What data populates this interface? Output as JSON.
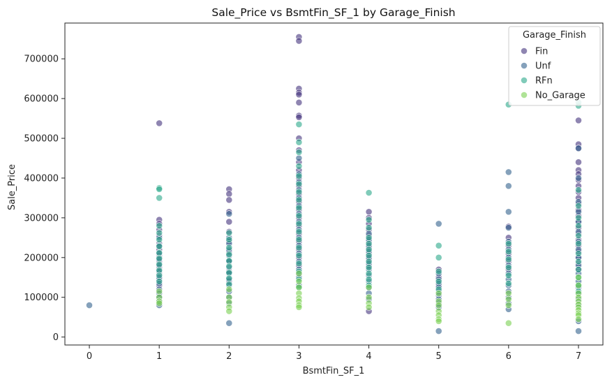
{
  "chart_data": {
    "type": "scatter",
    "title": "Sale_Price vs BsmtFin_SF_1 by Garage_Finish",
    "xlabel": "BsmtFin_SF_1",
    "ylabel": "Sale_Price",
    "xlim": [
      -0.35,
      7.35
    ],
    "ylim": [
      -20000,
      790000
    ],
    "x_ticks": [
      0,
      1,
      2,
      3,
      4,
      5,
      6,
      7
    ],
    "y_ticks": [
      0,
      100000,
      200000,
      300000,
      400000,
      500000,
      600000,
      700000
    ],
    "grid": false,
    "legend": {
      "title": "Garage_Finish",
      "placement": "top-right"
    },
    "series": [
      {
        "name": "Fin",
        "color": "#45337d",
        "points": [
          [
            1,
            538000
          ],
          [
            1,
            295000
          ],
          [
            1,
            285000
          ],
          [
            1,
            270000
          ],
          [
            1,
            255000
          ],
          [
            1,
            235000
          ],
          [
            1,
            220000
          ],
          [
            1,
            205000
          ],
          [
            1,
            190000
          ],
          [
            1,
            175000
          ],
          [
            1,
            160000
          ],
          [
            1,
            145000
          ],
          [
            1,
            130000
          ],
          [
            2,
            372000
          ],
          [
            2,
            360000
          ],
          [
            2,
            345000
          ],
          [
            2,
            315000
          ],
          [
            2,
            290000
          ],
          [
            2,
            265000
          ],
          [
            2,
            240000
          ],
          [
            2,
            215000
          ],
          [
            2,
            190000
          ],
          [
            2,
            165000
          ],
          [
            2,
            140000
          ],
          [
            3,
            755000
          ],
          [
            3,
            745000
          ],
          [
            3,
            625000
          ],
          [
            3,
            615000
          ],
          [
            3,
            610000
          ],
          [
            3,
            590000
          ],
          [
            3,
            557000
          ],
          [
            3,
            553000
          ],
          [
            3,
            500000
          ],
          [
            3,
            470000
          ],
          [
            3,
            440000
          ],
          [
            3,
            420000
          ],
          [
            3,
            400000
          ],
          [
            3,
            380000
          ],
          [
            3,
            360000
          ],
          [
            3,
            340000
          ],
          [
            3,
            320000
          ],
          [
            3,
            300000
          ],
          [
            3,
            280000
          ],
          [
            3,
            260000
          ],
          [
            3,
            240000
          ],
          [
            3,
            220000
          ],
          [
            3,
            200000
          ],
          [
            3,
            180000
          ],
          [
            3,
            160000
          ],
          [
            4,
            315000
          ],
          [
            4,
            300000
          ],
          [
            4,
            285000
          ],
          [
            4,
            270000
          ],
          [
            4,
            255000
          ],
          [
            4,
            240000
          ],
          [
            4,
            225000
          ],
          [
            4,
            210000
          ],
          [
            4,
            195000
          ],
          [
            4,
            180000
          ],
          [
            4,
            65000
          ],
          [
            5,
            170000
          ],
          [
            5,
            150000
          ],
          [
            5,
            130000
          ],
          [
            6,
            278000
          ],
          [
            6,
            250000
          ],
          [
            6,
            230000
          ],
          [
            6,
            210000
          ],
          [
            6,
            190000
          ],
          [
            6,
            170000
          ],
          [
            7,
            545000
          ],
          [
            7,
            485000
          ],
          [
            7,
            475000
          ],
          [
            7,
            440000
          ],
          [
            7,
            420000
          ],
          [
            7,
            410000
          ],
          [
            7,
            395000
          ],
          [
            7,
            380000
          ],
          [
            7,
            365000
          ],
          [
            7,
            350000
          ],
          [
            7,
            335000
          ],
          [
            7,
            320000
          ],
          [
            7,
            305000
          ],
          [
            7,
            290000
          ],
          [
            7,
            275000
          ],
          [
            7,
            260000
          ],
          [
            7,
            245000
          ],
          [
            7,
            230000
          ],
          [
            7,
            215000
          ],
          [
            7,
            200000
          ],
          [
            7,
            185000
          ],
          [
            7,
            170000
          ]
        ]
      },
      {
        "name": "Unf",
        "color": "#33638d",
        "points": [
          [
            0,
            80000
          ],
          [
            1,
            250000
          ],
          [
            1,
            230000
          ],
          [
            1,
            210000
          ],
          [
            1,
            195000
          ],
          [
            1,
            180000
          ],
          [
            1,
            165000
          ],
          [
            1,
            150000
          ],
          [
            1,
            135000
          ],
          [
            1,
            120000
          ],
          [
            1,
            110000
          ],
          [
            1,
            100000
          ],
          [
            1,
            90000
          ],
          [
            1,
            80000
          ],
          [
            2,
            310000
          ],
          [
            2,
            250000
          ],
          [
            2,
            235000
          ],
          [
            2,
            220000
          ],
          [
            2,
            205000
          ],
          [
            2,
            190000
          ],
          [
            2,
            175000
          ],
          [
            2,
            160000
          ],
          [
            2,
            145000
          ],
          [
            2,
            130000
          ],
          [
            2,
            115000
          ],
          [
            2,
            100000
          ],
          [
            2,
            85000
          ],
          [
            2,
            35000
          ],
          [
            3,
            450000
          ],
          [
            3,
            410000
          ],
          [
            3,
            390000
          ],
          [
            3,
            370000
          ],
          [
            3,
            350000
          ],
          [
            3,
            330000
          ],
          [
            3,
            310000
          ],
          [
            3,
            290000
          ],
          [
            3,
            270000
          ],
          [
            3,
            250000
          ],
          [
            3,
            230000
          ],
          [
            3,
            210000
          ],
          [
            3,
            190000
          ],
          [
            3,
            170000
          ],
          [
            3,
            150000
          ],
          [
            3,
            130000
          ],
          [
            4,
            260000
          ],
          [
            4,
            245000
          ],
          [
            4,
            230000
          ],
          [
            4,
            215000
          ],
          [
            4,
            200000
          ],
          [
            4,
            185000
          ],
          [
            4,
            170000
          ],
          [
            4,
            155000
          ],
          [
            4,
            140000
          ],
          [
            4,
            125000
          ],
          [
            4,
            110000
          ],
          [
            4,
            95000
          ],
          [
            5,
            285000
          ],
          [
            5,
            160000
          ],
          [
            5,
            145000
          ],
          [
            5,
            135000
          ],
          [
            5,
            125000
          ],
          [
            5,
            115000
          ],
          [
            5,
            105000
          ],
          [
            5,
            95000
          ],
          [
            5,
            85000
          ],
          [
            5,
            75000
          ],
          [
            5,
            15000
          ],
          [
            6,
            415000
          ],
          [
            6,
            380000
          ],
          [
            6,
            315000
          ],
          [
            6,
            275000
          ],
          [
            6,
            240000
          ],
          [
            6,
            220000
          ],
          [
            6,
            200000
          ],
          [
            6,
            180000
          ],
          [
            6,
            160000
          ],
          [
            6,
            145000
          ],
          [
            6,
            130000
          ],
          [
            6,
            115000
          ],
          [
            6,
            100000
          ],
          [
            6,
            85000
          ],
          [
            6,
            70000
          ],
          [
            7,
            475000
          ],
          [
            7,
            400000
          ],
          [
            7,
            340000
          ],
          [
            7,
            315000
          ],
          [
            7,
            290000
          ],
          [
            7,
            265000
          ],
          [
            7,
            240000
          ],
          [
            7,
            220000
          ],
          [
            7,
            200000
          ],
          [
            7,
            180000
          ],
          [
            7,
            160000
          ],
          [
            7,
            140000
          ],
          [
            7,
            125000
          ],
          [
            7,
            110000
          ],
          [
            7,
            95000
          ],
          [
            7,
            80000
          ],
          [
            7,
            40000
          ],
          [
            7,
            15000
          ]
        ]
      },
      {
        "name": "RFn",
        "color": "#2ba88a",
        "points": [
          [
            1,
            375000
          ],
          [
            1,
            372000
          ],
          [
            1,
            350000
          ],
          [
            1,
            280000
          ],
          [
            1,
            262000
          ],
          [
            1,
            245000
          ],
          [
            1,
            228000
          ],
          [
            1,
            212000
          ],
          [
            1,
            198000
          ],
          [
            1,
            183000
          ],
          [
            1,
            168000
          ],
          [
            1,
            155000
          ],
          [
            1,
            140000
          ],
          [
            2,
            262000
          ],
          [
            2,
            245000
          ],
          [
            2,
            225000
          ],
          [
            2,
            208000
          ],
          [
            2,
            192000
          ],
          [
            2,
            178000
          ],
          [
            2,
            162000
          ],
          [
            2,
            148000
          ],
          [
            2,
            133000
          ],
          [
            3,
            535000
          ],
          [
            3,
            490000
          ],
          [
            3,
            465000
          ],
          [
            3,
            430000
          ],
          [
            3,
            405000
          ],
          [
            3,
            385000
          ],
          [
            3,
            365000
          ],
          [
            3,
            345000
          ],
          [
            3,
            325000
          ],
          [
            3,
            305000
          ],
          [
            3,
            285000
          ],
          [
            3,
            265000
          ],
          [
            3,
            245000
          ],
          [
            3,
            225000
          ],
          [
            3,
            205000
          ],
          [
            3,
            185000
          ],
          [
            3,
            165000
          ],
          [
            3,
            145000
          ],
          [
            3,
            125000
          ],
          [
            4,
            363000
          ],
          [
            4,
            295000
          ],
          [
            4,
            275000
          ],
          [
            4,
            250000
          ],
          [
            4,
            235000
          ],
          [
            4,
            220000
          ],
          [
            4,
            205000
          ],
          [
            4,
            190000
          ],
          [
            4,
            175000
          ],
          [
            4,
            160000
          ],
          [
            4,
            145000
          ],
          [
            4,
            130000
          ],
          [
            5,
            230000
          ],
          [
            5,
            200000
          ],
          [
            5,
            165000
          ],
          [
            5,
            140000
          ],
          [
            5,
            120000
          ],
          [
            6,
            585000
          ],
          [
            6,
            235000
          ],
          [
            6,
            215000
          ],
          [
            6,
            195000
          ],
          [
            6,
            175000
          ],
          [
            6,
            155000
          ],
          [
            6,
            135000
          ],
          [
            7,
            582000
          ],
          [
            7,
            590000
          ],
          [
            7,
            370000
          ],
          [
            7,
            330000
          ],
          [
            7,
            300000
          ],
          [
            7,
            280000
          ],
          [
            7,
            255000
          ],
          [
            7,
            235000
          ],
          [
            7,
            210000
          ],
          [
            7,
            190000
          ],
          [
            7,
            170000
          ],
          [
            7,
            150000
          ],
          [
            7,
            130000
          ],
          [
            7,
            115000
          ]
        ]
      },
      {
        "name": "No_Garage",
        "color": "#7ad151",
        "points": [
          [
            1,
            115000
          ],
          [
            1,
            100000
          ],
          [
            1,
            90000
          ],
          [
            1,
            85000
          ],
          [
            2,
            120000
          ],
          [
            2,
            100000
          ],
          [
            2,
            88000
          ],
          [
            2,
            75000
          ],
          [
            2,
            65000
          ],
          [
            3,
            160000
          ],
          [
            3,
            140000
          ],
          [
            3,
            125000
          ],
          [
            3,
            110000
          ],
          [
            3,
            98000
          ],
          [
            3,
            90000
          ],
          [
            3,
            80000
          ],
          [
            3,
            75000
          ],
          [
            4,
            125000
          ],
          [
            4,
            100000
          ],
          [
            4,
            85000
          ],
          [
            4,
            75000
          ],
          [
            5,
            110000
          ],
          [
            5,
            90000
          ],
          [
            5,
            80000
          ],
          [
            5,
            65000
          ],
          [
            5,
            55000
          ],
          [
            5,
            45000
          ],
          [
            5,
            40000
          ],
          [
            6,
            110000
          ],
          [
            6,
            95000
          ],
          [
            6,
            80000
          ],
          [
            6,
            35000
          ],
          [
            7,
            150000
          ],
          [
            7,
            130000
          ],
          [
            7,
            110000
          ],
          [
            7,
            100000
          ],
          [
            7,
            90000
          ],
          [
            7,
            82000
          ],
          [
            7,
            75000
          ],
          [
            7,
            68000
          ],
          [
            7,
            60000
          ],
          [
            7,
            55000
          ],
          [
            7,
            45000
          ]
        ]
      }
    ]
  }
}
